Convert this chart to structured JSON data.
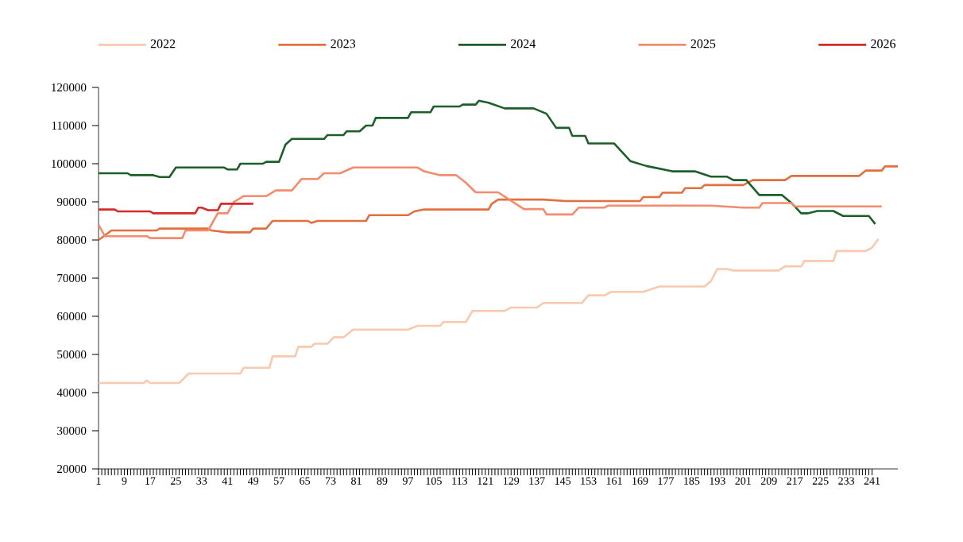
{
  "chart_data": {
    "type": "line",
    "legend": "top",
    "xlim": [
      1,
      249
    ],
    "xticks": [
      1,
      9,
      17,
      25,
      33,
      41,
      49,
      57,
      65,
      73,
      81,
      89,
      97,
      105,
      113,
      121,
      129,
      137,
      145,
      153,
      161,
      169,
      177,
      185,
      193,
      201,
      209,
      217,
      225,
      233,
      241
    ],
    "ylim": [
      20000,
      120000
    ],
    "yticks": [
      20000,
      30000,
      40000,
      50000,
      60000,
      70000,
      80000,
      90000,
      100000,
      110000,
      120000
    ],
    "series": [
      {
        "name": "2022",
        "color": "#f9c9ae",
        "x": [
          1,
          15,
          16,
          17,
          26,
          29,
          45,
          46,
          54,
          55,
          62,
          63,
          67,
          68,
          72,
          74,
          77,
          80,
          97,
          100,
          107,
          108,
          115,
          117,
          127,
          129,
          137,
          139,
          151,
          153,
          158,
          160,
          170,
          175,
          189,
          191,
          193,
          196,
          198,
          212,
          214,
          219,
          220,
          229,
          230,
          239,
          241,
          243
        ],
        "values": [
          42500,
          42500,
          43200,
          42500,
          42500,
          45000,
          45000,
          46500,
          46500,
          49500,
          49500,
          52000,
          52000,
          52800,
          52800,
          54500,
          54500,
          56500,
          56500,
          57500,
          57500,
          58500,
          58500,
          61400,
          61400,
          62300,
          62300,
          63500,
          63500,
          65500,
          65500,
          66400,
          66400,
          67800,
          67800,
          69200,
          72400,
          72400,
          72000,
          72000,
          73100,
          73100,
          74500,
          74500,
          77100,
          77100,
          78000,
          80300
        ]
      },
      {
        "name": "2023",
        "color": "#e2703e",
        "x": [
          1,
          5,
          19,
          20,
          35,
          36,
          41,
          48,
          49,
          53,
          55,
          66,
          67,
          69,
          84,
          85,
          97,
          99,
          102,
          122,
          123,
          125,
          139,
          146,
          169,
          170,
          175,
          176,
          182,
          183,
          188,
          189,
          201,
          204,
          214,
          216,
          237,
          239,
          244,
          245,
          249
        ],
        "values": [
          80000,
          82500,
          82500,
          83000,
          83000,
          82500,
          82000,
          82000,
          83000,
          83000,
          85000,
          85000,
          84500,
          85000,
          85000,
          86500,
          86500,
          87500,
          88000,
          88000,
          89500,
          90600,
          90600,
          90200,
          90200,
          91250,
          91250,
          92400,
          92400,
          93600,
          93600,
          94400,
          94400,
          95700,
          95700,
          96800,
          96800,
          98200,
          98200,
          99300,
          99300
        ]
      },
      {
        "name": "2024",
        "color": "#1e5e2a",
        "x": [
          1,
          10,
          11,
          18,
          20,
          23,
          25,
          40,
          41,
          44,
          45,
          52,
          53,
          57,
          59,
          61,
          71,
          72,
          77,
          78,
          82,
          84,
          86,
          87,
          97,
          98,
          104,
          105,
          113,
          114,
          118,
          119,
          122,
          127,
          136,
          140,
          143,
          147,
          148,
          152,
          153,
          161,
          166,
          171,
          179,
          186,
          191,
          196,
          198,
          202,
          206,
          213,
          216,
          219,
          221,
          224,
          229,
          232,
          240,
          242
        ],
        "values": [
          97500,
          97500,
          97000,
          97000,
          96500,
          96500,
          99000,
          99000,
          98500,
          98500,
          100000,
          100000,
          100500,
          100500,
          105000,
          106500,
          106500,
          107500,
          107500,
          108500,
          108500,
          110000,
          110000,
          112000,
          112000,
          113500,
          113500,
          115000,
          115000,
          115500,
          115500,
          116500,
          116000,
          114500,
          114500,
          113100,
          109400,
          109400,
          107300,
          107300,
          105300,
          105300,
          100700,
          99400,
          98000,
          98000,
          96600,
          96600,
          95700,
          95700,
          91800,
          91800,
          89700,
          87000,
          87000,
          87600,
          87600,
          86300,
          86300,
          84200
        ]
      },
      {
        "name": "2025",
        "color": "#f28c6c",
        "x": [
          1,
          3,
          16,
          17,
          27,
          28,
          35,
          38,
          41,
          43,
          46,
          53,
          56,
          61,
          64,
          69,
          71,
          76,
          80,
          100,
          102,
          107,
          112,
          115,
          118,
          125,
          133,
          139,
          140,
          148,
          150,
          158,
          159,
          191,
          201,
          206,
          207,
          216,
          217,
          244
        ],
        "values": [
          84000,
          81000,
          81000,
          80500,
          80500,
          82500,
          82500,
          87000,
          87000,
          90000,
          91500,
          91500,
          93000,
          93000,
          96000,
          96000,
          97500,
          97500,
          99000,
          99000,
          98000,
          97000,
          97000,
          95000,
          92500,
          92500,
          88100,
          88100,
          86700,
          86700,
          88500,
          88500,
          89000,
          89000,
          88500,
          88500,
          89700,
          89700,
          88800,
          88800
        ]
      },
      {
        "name": "2026",
        "color": "#d42a2a",
        "x": [
          1,
          6,
          7,
          17,
          18,
          31,
          32,
          33,
          35,
          38,
          39,
          49
        ],
        "values": [
          88000,
          88000,
          87500,
          87500,
          87000,
          87000,
          88500,
          88500,
          87800,
          87800,
          89500,
          89500
        ]
      }
    ]
  }
}
